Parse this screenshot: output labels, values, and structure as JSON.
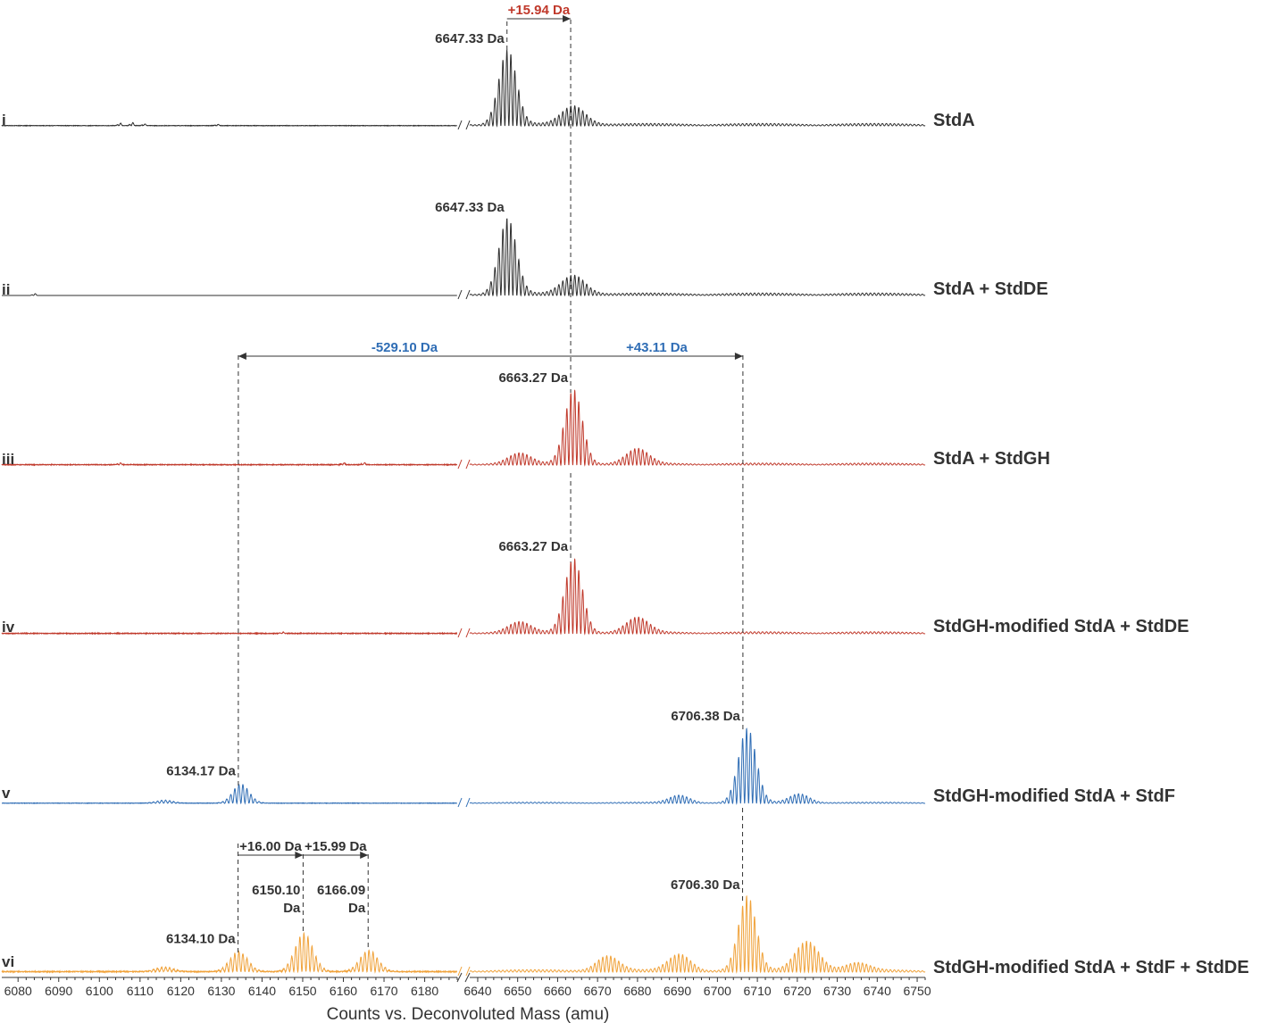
{
  "colors": {
    "black": "#2f2f2f",
    "red": "#c0392b",
    "blue": "#2f6db5",
    "orange": "#f0a23a",
    "text": "#333333"
  },
  "chart_data": {
    "type": "line",
    "xlabel": "Counts vs. Deconvoluted Mass (amu)",
    "xlim_left": [
      6076,
      6188
    ],
    "xlim_right": [
      6638,
      6752
    ],
    "broken_axis": true,
    "ticks_left": [
      6080,
      6090,
      6100,
      6110,
      6120,
      6130,
      6140,
      6150,
      6160,
      6170,
      6180
    ],
    "ticks_right": [
      6640,
      6650,
      6660,
      6670,
      6680,
      6690,
      6700,
      6710,
      6720,
      6730,
      6740,
      6750
    ],
    "series": [
      {
        "panel": "i",
        "name": "StdA",
        "color": "black",
        "peaks": [
          {
            "mass": 6647.5,
            "amp": 1.0,
            "width": 2.2,
            "label": "6647.33 Da",
            "label_mass": 6647.33
          },
          {
            "mass": 6664.0,
            "amp": 0.25,
            "width": 3.0
          }
        ],
        "left_peaks": [
          {
            "mass": 6105,
            "amp": 0.04,
            "width": 0.4
          },
          {
            "mass": 6108,
            "amp": 0.05,
            "width": 0.4
          },
          {
            "mass": 6111,
            "amp": 0.03,
            "width": 0.4
          },
          {
            "mass": 6129,
            "amp": 0.02,
            "width": 0.4
          }
        ],
        "noise": 0.012,
        "hump": 0.06
      },
      {
        "panel": "ii",
        "name": "StdA + StdDE",
        "color": "black",
        "peaks": [
          {
            "mass": 6647.5,
            "amp": 1.0,
            "width": 2.2,
            "label": "6647.33 Da",
            "label_mass": 6647.33
          },
          {
            "mass": 6664.0,
            "amp": 0.25,
            "width": 3.0
          }
        ],
        "left_peaks": [
          {
            "mass": 6084,
            "amp": 0.03,
            "width": 0.4
          }
        ],
        "noise": 0.0,
        "hump": 0.06
      },
      {
        "panel": "iii",
        "name": "StdA + StdGH",
        "color": "red",
        "peaks": [
          {
            "mass": 6664.0,
            "amp": 1.0,
            "width": 2.2,
            "label": "6663.27 Da",
            "label_mass": 6663.27
          },
          {
            "mass": 6650.5,
            "amp": 0.14,
            "width": 2.8
          },
          {
            "mass": 6680.0,
            "amp": 0.2,
            "width": 2.8
          }
        ],
        "left_peaks": [
          {
            "mass": 6105,
            "amp": 0.03,
            "width": 0.4
          },
          {
            "mass": 6160,
            "amp": 0.03,
            "width": 0.4
          },
          {
            "mass": 6165,
            "amp": 0.03,
            "width": 0.4
          }
        ],
        "noise": 0.02,
        "hump": 0.05
      },
      {
        "panel": "iv",
        "name": "StdGH-modified StdA + StdDE",
        "color": "red",
        "peaks": [
          {
            "mass": 6664.0,
            "amp": 1.0,
            "width": 2.2,
            "label": "6663.27 Da",
            "label_mass": 6663.27
          },
          {
            "mass": 6650.5,
            "amp": 0.14,
            "width": 2.8
          },
          {
            "mass": 6680.0,
            "amp": 0.2,
            "width": 2.8
          }
        ],
        "left_peaks": [
          {
            "mass": 6145,
            "amp": 0.02,
            "width": 0.4
          }
        ],
        "noise": 0.02,
        "hump": 0.05
      },
      {
        "panel": "v",
        "name": "StdGH-modified StdA + StdF",
        "color": "blue",
        "peaks": [
          {
            "mass": 6707.5,
            "amp": 1.0,
            "width": 2.2,
            "label": "6706.38 Da",
            "label_mass": 6706.38
          },
          {
            "mass": 6690.5,
            "amp": 0.1,
            "width": 2.5
          },
          {
            "mass": 6720.5,
            "amp": 0.12,
            "width": 2.5
          }
        ],
        "left_peaks": [
          {
            "mass": 6134.8,
            "amp": 0.26,
            "width": 2.0,
            "label": "6134.17 Da",
            "label_mass": 6134.17
          },
          {
            "mass": 6116,
            "amp": 0.04,
            "width": 2.0
          }
        ],
        "noise": 0.012,
        "hump": 0.03
      },
      {
        "panel": "vi",
        "name": "StdGH-modified StdA + StdF + StdDE",
        "color": "orange",
        "peaks": [
          {
            "mass": 6707.5,
            "amp": 1.0,
            "width": 2.2,
            "label": "6706.30 Da",
            "label_mass": 6706.3
          },
          {
            "mass": 6672.5,
            "amp": 0.2,
            "width": 2.8
          },
          {
            "mass": 6690.5,
            "amp": 0.22,
            "width": 2.8
          },
          {
            "mass": 6722.5,
            "amp": 0.4,
            "width": 3.0
          },
          {
            "mass": 6735,
            "amp": 0.1,
            "width": 3.0
          }
        ],
        "left_peaks": [
          {
            "mass": 6134.3,
            "amp": 0.27,
            "width": 2.2,
            "label": "6134.10 Da",
            "label_mass": 6134.1
          },
          {
            "mass": 6150.3,
            "amp": 0.52,
            "width": 2.2,
            "label": "6150.10 Da",
            "label_mass": 6150.1
          },
          {
            "mass": 6166.3,
            "amp": 0.29,
            "width": 2.2,
            "label": "6166.09 Da",
            "label_mass": 6166.09
          },
          {
            "mass": 6116,
            "amp": 0.06,
            "width": 2.2
          }
        ],
        "noise": 0.025,
        "hump": 0.06
      }
    ],
    "annotations": [
      {
        "text": "+15.94 Da",
        "color": "red",
        "from": 6647.33,
        "to": 6663.27,
        "panel": "i",
        "arrow": "right"
      },
      {
        "text": "-529.10 Da",
        "color": "blue",
        "from": 6134.17,
        "to": 6663.27,
        "panel": "iii",
        "arrow": "left"
      },
      {
        "text": "+43.11 Da",
        "color": "blue",
        "from": 6663.27,
        "to": 6706.38,
        "panel": "iii",
        "arrow": "right"
      },
      {
        "text": "+16.00 Da",
        "color": "black",
        "from": 6134.1,
        "to": 6150.1,
        "panel": "vi",
        "arrow": "right"
      },
      {
        "text": "+15.99 Da",
        "color": "black",
        "from": 6150.1,
        "to": 6166.09,
        "panel": "vi",
        "arrow": "right"
      }
    ]
  }
}
